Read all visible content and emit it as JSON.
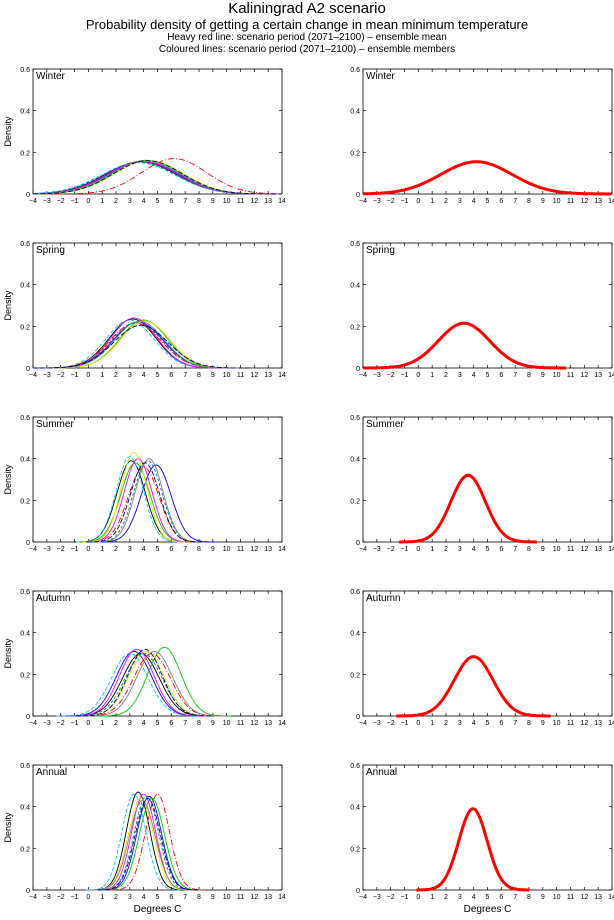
{
  "header": {
    "title": "Kaliningrad A2 scenario",
    "subtitle": "Probability density of getting a certain change in mean minimum temperature",
    "note1": "Heavy red line: scenario period (2071–2100) – ensemble mean",
    "note2": "Coloured lines: scenario period (2071–2100) – ensemble members"
  },
  "axes": {
    "xlabel": "Degrees C",
    "ylabel": "Density",
    "xlim": [
      -4,
      14
    ],
    "ylim": [
      0,
      0.6
    ],
    "xticks": [
      "-4",
      "-3",
      "-2",
      "-1",
      "0",
      "1",
      "2",
      "3",
      "4",
      "5",
      "6",
      "7",
      "8",
      "9",
      "10",
      "11",
      "12",
      "13",
      "14"
    ],
    "yticks": [
      "0",
      "0.2",
      "0.4",
      "0.6"
    ]
  },
  "colors": {
    "ensemble_mean": "#ff0000",
    "members": [
      "#000000",
      "#0000ff",
      "#00c8ff",
      "#00cc00",
      "#ff00ff",
      "#ff0000",
      "#e6e600",
      "#008080",
      "#808080",
      "#000080"
    ]
  },
  "chart_data": [
    {
      "type": "line",
      "panel": "ensemble members",
      "season": "Winter",
      "series": [
        {
          "mean": 3.8,
          "peak": 0.155
        },
        {
          "mean": 4.0,
          "peak": 0.158
        },
        {
          "mean": 3.6,
          "peak": 0.15
        },
        {
          "mean": 4.2,
          "peak": 0.162
        },
        {
          "mean": 3.9,
          "peak": 0.156
        },
        {
          "mean": 6.2,
          "peak": 0.17
        },
        {
          "mean": 4.4,
          "peak": 0.16
        },
        {
          "mean": 3.7,
          "peak": 0.152
        },
        {
          "mean": 4.1,
          "peak": 0.157
        },
        {
          "mean": 4.3,
          "peak": 0.16
        }
      ]
    },
    {
      "type": "line",
      "panel": "ensemble mean",
      "season": "Winter",
      "series": [
        {
          "mean": 4.2,
          "peak": 0.155
        }
      ]
    },
    {
      "type": "line",
      "panel": "ensemble members",
      "season": "Spring",
      "series": [
        {
          "mean": 3.2,
          "peak": 0.235
        },
        {
          "mean": 3.6,
          "peak": 0.22
        },
        {
          "mean": 3.0,
          "peak": 0.23
        },
        {
          "mean": 4.0,
          "peak": 0.23
        },
        {
          "mean": 3.3,
          "peak": 0.24
        },
        {
          "mean": 3.4,
          "peak": 0.215
        },
        {
          "mean": 4.1,
          "peak": 0.225
        },
        {
          "mean": 3.5,
          "peak": 0.22
        },
        {
          "mean": 3.7,
          "peak": 0.225
        },
        {
          "mean": 3.8,
          "peak": 0.205
        }
      ]
    },
    {
      "type": "line",
      "panel": "ensemble mean",
      "season": "Spring",
      "series": [
        {
          "mean": 3.3,
          "peak": 0.215
        }
      ]
    },
    {
      "type": "line",
      "panel": "ensemble members",
      "season": "Summer",
      "series": [
        {
          "mean": 3.1,
          "peak": 0.39
        },
        {
          "mean": 4.9,
          "peak": 0.37
        },
        {
          "mean": 3.0,
          "peak": 0.41
        },
        {
          "mean": 3.4,
          "peak": 0.38
        },
        {
          "mean": 3.6,
          "peak": 0.4
        },
        {
          "mean": 4.0,
          "peak": 0.36
        },
        {
          "mean": 3.3,
          "peak": 0.43
        },
        {
          "mean": 4.3,
          "peak": 0.39
        },
        {
          "mean": 4.4,
          "peak": 0.4
        },
        {
          "mean": 4.1,
          "peak": 0.38
        }
      ]
    },
    {
      "type": "line",
      "panel": "ensemble mean",
      "season": "Summer",
      "series": [
        {
          "mean": 3.6,
          "peak": 0.32
        }
      ]
    },
    {
      "type": "line",
      "panel": "ensemble members",
      "season": "Autumn",
      "series": [
        {
          "mean": 3.8,
          "peak": 0.3
        },
        {
          "mean": 3.3,
          "peak": 0.31
        },
        {
          "mean": 3.0,
          "peak": 0.3
        },
        {
          "mean": 5.5,
          "peak": 0.33
        },
        {
          "mean": 3.5,
          "peak": 0.32
        },
        {
          "mean": 4.6,
          "peak": 0.3
        },
        {
          "mean": 4.2,
          "peak": 0.31
        },
        {
          "mean": 4.0,
          "peak": 0.3
        },
        {
          "mean": 4.8,
          "peak": 0.31
        },
        {
          "mean": 4.1,
          "peak": 0.32
        }
      ]
    },
    {
      "type": "line",
      "panel": "ensemble mean",
      "season": "Autumn",
      "series": [
        {
          "mean": 4.0,
          "peak": 0.285
        }
      ]
    },
    {
      "type": "line",
      "panel": "ensemble members",
      "season": "Annual",
      "series": [
        {
          "mean": 3.6,
          "peak": 0.47
        },
        {
          "mean": 4.4,
          "peak": 0.45
        },
        {
          "mean": 3.3,
          "peak": 0.46
        },
        {
          "mean": 4.6,
          "peak": 0.44
        },
        {
          "mean": 4.0,
          "peak": 0.46
        },
        {
          "mean": 5.0,
          "peak": 0.46
        },
        {
          "mean": 3.8,
          "peak": 0.44
        },
        {
          "mean": 4.2,
          "peak": 0.45
        },
        {
          "mean": 3.9,
          "peak": 0.43
        },
        {
          "mean": 4.3,
          "peak": 0.44
        }
      ]
    },
    {
      "type": "line",
      "panel": "ensemble mean",
      "season": "Annual",
      "series": [
        {
          "mean": 3.95,
          "peak": 0.39
        }
      ]
    }
  ]
}
